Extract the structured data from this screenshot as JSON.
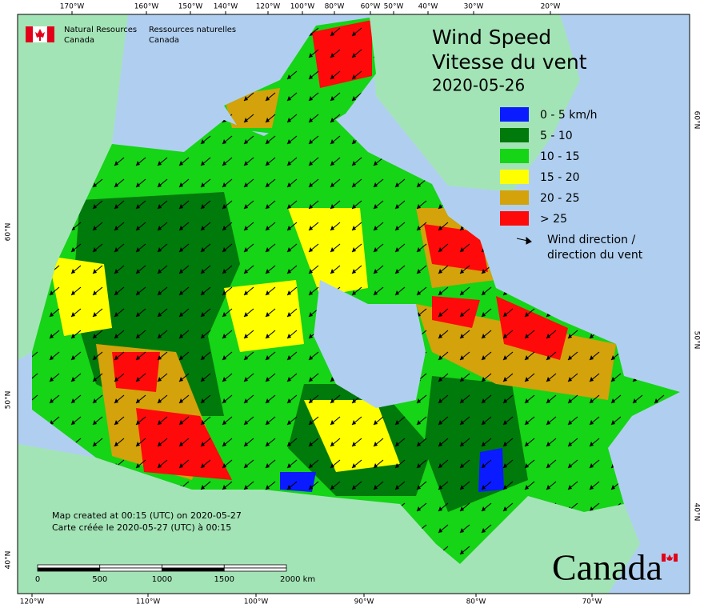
{
  "header": {
    "agency_en": [
      "Natural Resources",
      "Canada"
    ],
    "agency_fr": [
      "Ressources naturelles",
      "Canada"
    ]
  },
  "title": {
    "lines": [
      "Wind Speed",
      "Vitesse du vent"
    ],
    "date": "2020-05-26"
  },
  "legend": {
    "items": [
      {
        "label": "0 - 5 km/h",
        "color": "#0a1cff"
      },
      {
        "label": "5 - 10",
        "color": "#007a0a"
      },
      {
        "label": "10 - 15",
        "color": "#16d416"
      },
      {
        "label": "15 - 20",
        "color": "#ffff00"
      },
      {
        "label": "20 - 25",
        "color": "#d4a20a"
      },
      {
        "label": "> 25",
        "color": "#ff0a0a"
      }
    ],
    "arrow_label": [
      "Wind direction /",
      "direction du vent"
    ]
  },
  "graticule": {
    "top": [
      "170°W",
      "160°W",
      "150°W",
      "140°W",
      "120°W",
      "100°W",
      "80°W",
      "60°W",
      "50°W",
      "40°W",
      "30°W",
      "20°W"
    ],
    "bottom": [
      "120°W",
      "110°W",
      "100°W",
      "90°W",
      "80°W",
      "70°W"
    ],
    "left": [
      "60°N",
      "50°N",
      "40°N"
    ],
    "right": [
      "60°N",
      "50°N",
      "40°N"
    ]
  },
  "footer": {
    "created": [
      "Map created at 00:15 (UTC) on 2020-05-27",
      "Carte créée le 2020-05-27 (UTC) à 00:15"
    ]
  },
  "scale_bar": {
    "labels": [
      "0",
      "500",
      "1000",
      "1500",
      "2000 km"
    ]
  },
  "wordmark": "Canada"
}
